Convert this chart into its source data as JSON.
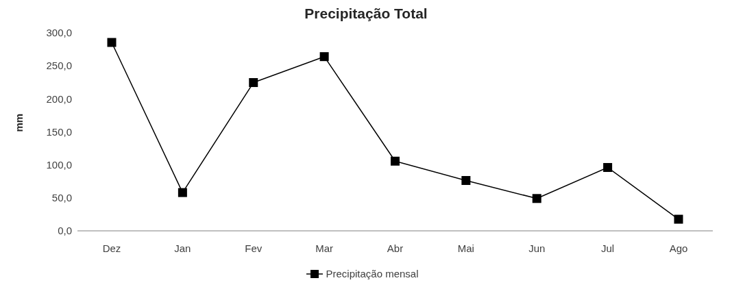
{
  "chart_data": {
    "type": "line",
    "title": "Precipitação Total",
    "ylabel": "mm",
    "categories": [
      "Dez",
      "Jan",
      "Fev",
      "Mar",
      "Abr",
      "Mai",
      "Jun",
      "Jul",
      "Ago"
    ],
    "series": [
      {
        "name": "Precipitação mensal",
        "color": "#000000",
        "values": [
          285.5,
          58,
          224.7,
          264,
          105.6,
          76.3,
          49,
          96,
          17.6
        ]
      }
    ],
    "ylim": [
      0,
      300
    ],
    "yticks": [
      {
        "value": 0,
        "label": "0,0"
      },
      {
        "value": 50,
        "label": "50,0"
      },
      {
        "value": 100,
        "label": "100,0"
      },
      {
        "value": 150,
        "label": "150,0"
      },
      {
        "value": 200,
        "label": "200,0"
      },
      {
        "value": 250,
        "label": "250,0"
      },
      {
        "value": 300,
        "label": "300,0"
      }
    ],
    "grid": false,
    "legend": "bottom",
    "marker": "square",
    "line_style": "solid"
  }
}
